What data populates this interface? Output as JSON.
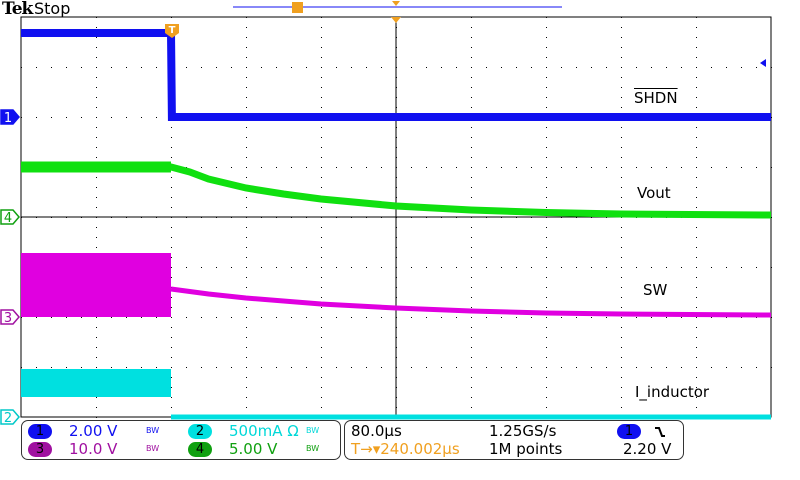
{
  "header": {
    "brand": "Tek",
    "acquisition_state": "Stop"
  },
  "colors": {
    "ch1": "#1010f0",
    "ch2": "#00e0e0",
    "ch3": "#e000e0",
    "ch4": "#10e010",
    "trigger": "#f0a020",
    "grid": "#000000"
  },
  "trace_labels": {
    "ch1": "SHDN",
    "ch4": "Vout",
    "ch3": "SW",
    "ch2": "I_inductor"
  },
  "channel_markers": {
    "ch1": "1",
    "ch2": "2",
    "ch3": "3",
    "ch4": "4"
  },
  "trigger_marker": "T",
  "vertical_panel": {
    "ch1": {
      "num": "1",
      "scale": "2.00 V",
      "bw": "BW"
    },
    "ch2": {
      "num": "2",
      "scale": "500mA Ω",
      "bw": "BW"
    },
    "ch3": {
      "num": "3",
      "scale": "10.0 V",
      "bw": "BW"
    },
    "ch4": {
      "num": "4",
      "scale": "5.00 V",
      "bw": "BW"
    }
  },
  "horizontal_panel": {
    "timebase": "80.0µs",
    "sample_rate": "1.25GS/s",
    "position_prefix": "T→▾",
    "position": "240.002µs",
    "record_length": "1M points",
    "trigger_source": "1",
    "trigger_slope": "falling-edge-icon",
    "trigger_level": "2.20 V"
  },
  "chart_data": {
    "type": "line",
    "xlabel": "",
    "ylabel": "",
    "x_units": "µs",
    "xlim": [
      -160,
      640
    ],
    "grid": true,
    "divisions": {
      "x": 10,
      "y": 8
    },
    "series": [
      {
        "name": "SHDN",
        "channel": 1,
        "volts_per_div": 2.0,
        "units": "V",
        "points": [
          [
            -160,
            3.36
          ],
          [
            0,
            3.36
          ],
          [
            1,
            0
          ],
          [
            640,
            0
          ]
        ]
      },
      {
        "name": "Vout",
        "channel": 4,
        "volts_per_div": 5.0,
        "units": "V",
        "points": [
          [
            -160,
            5.0
          ],
          [
            0,
            5.0
          ],
          [
            20,
            4.5
          ],
          [
            40,
            3.8
          ],
          [
            80,
            2.9
          ],
          [
            120,
            2.3
          ],
          [
            160,
            1.8
          ],
          [
            240,
            1.1
          ],
          [
            320,
            0.7
          ],
          [
            400,
            0.45
          ],
          [
            480,
            0.3
          ],
          [
            640,
            0.2
          ]
        ]
      },
      {
        "name": "SW",
        "channel": 3,
        "volts_per_div": 10.0,
        "units": "V",
        "band_before_trigger": [
          0,
          12.8
        ],
        "points": [
          [
            0,
            5.6
          ],
          [
            40,
            4.6
          ],
          [
            80,
            3.8
          ],
          [
            160,
            2.6
          ],
          [
            240,
            1.8
          ],
          [
            320,
            1.2
          ],
          [
            400,
            0.8
          ],
          [
            480,
            0.6
          ],
          [
            640,
            0.4
          ]
        ]
      },
      {
        "name": "I_inductor",
        "channel": 2,
        "volts_per_div": 0.5,
        "units": "A",
        "band_before_trigger": [
          0.2,
          0.48
        ],
        "points": [
          [
            0,
            0
          ],
          [
            640,
            0
          ]
        ]
      }
    ]
  }
}
